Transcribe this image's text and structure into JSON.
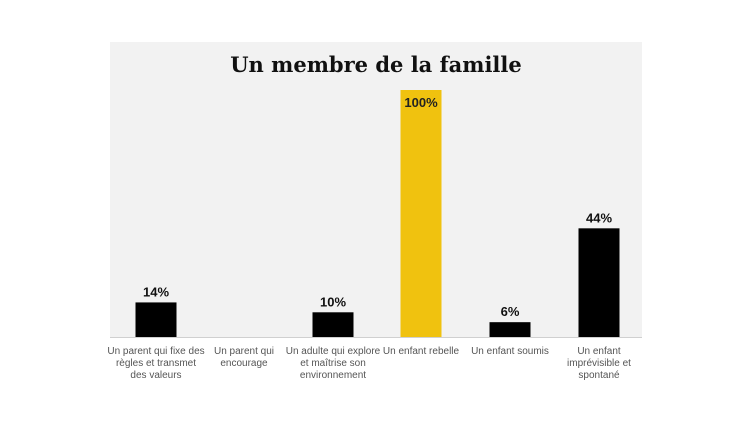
{
  "chart_data": {
    "type": "bar",
    "title": "Un membre de la famille",
    "categories": [
      "Un parent qui fixe des règles et transmet des valeurs",
      "Un parent qui encourage",
      "Un adulte qui explore et maîtrise son environnement",
      "Un enfant rebelle",
      "Un enfant soumis",
      "Un enfant imprévisible et spontané"
    ],
    "category_lines": [
      [
        "Un parent qui fixe des",
        "règles et transmet",
        "des valeurs"
      ],
      [
        "Un parent qui",
        "encourage"
      ],
      [
        "Un adulte qui explore",
        "et maîtrise son",
        "environnement"
      ],
      [
        "Un enfant rebelle"
      ],
      [
        "Un enfant soumis"
      ],
      [
        "Un enfant",
        "imprévisible et",
        "spontané"
      ]
    ],
    "values": [
      14,
      0,
      10,
      100,
      6,
      44
    ],
    "value_labels": [
      "14%",
      "",
      "10%",
      "100%",
      "6%",
      "44%"
    ],
    "highlight_index": 3,
    "ylim": [
      0,
      100
    ],
    "grid": false,
    "xlabel": "",
    "ylabel": "",
    "colors": {
      "bar": "#000000",
      "highlight": "#f0c20f",
      "panel": "#f2f2f2",
      "axis": "#d0d0d0"
    }
  }
}
